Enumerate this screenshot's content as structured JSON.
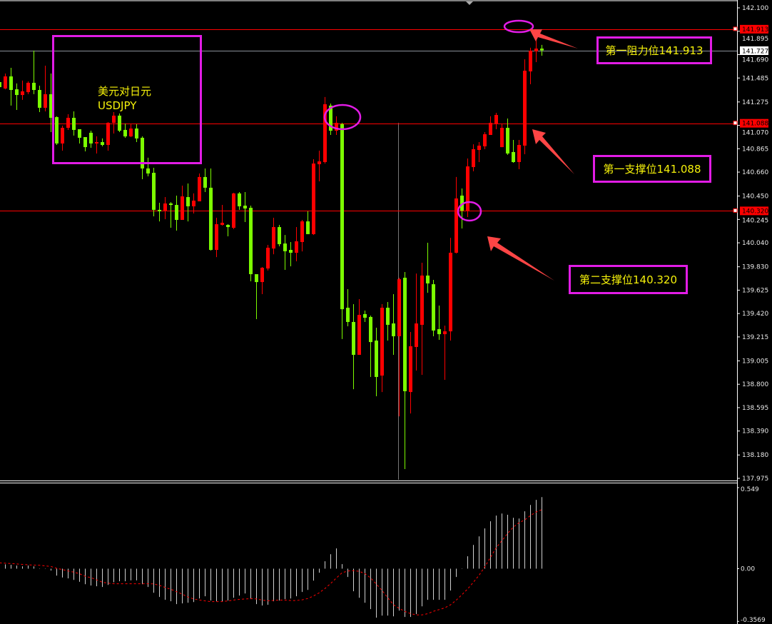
{
  "chart_data": {
    "type": "candlestick",
    "symbol_label": "美元对日元",
    "symbol": "USDJPY",
    "up_color": "#ff0000",
    "down_color": "#7cfc00",
    "price_axis": {
      "ylim": [
        137.975,
        142.1
      ],
      "ticks": [
        "142.100",
        "141.895",
        "141.690",
        "141.485",
        "141.275",
        "141.070",
        "140.865",
        "140.660",
        "140.450",
        "140.245",
        "140.040",
        "139.830",
        "139.625",
        "139.420",
        "139.215",
        "139.005",
        "138.800",
        "138.595",
        "138.390",
        "138.180",
        "137.975"
      ]
    },
    "ohlc": [
      [
        141.449,
        141.48,
        141.386,
        141.405
      ],
      [
        141.393,
        141.524,
        141.386,
        141.499
      ],
      [
        141.499,
        141.574,
        141.243,
        141.38
      ],
      [
        141.386,
        141.437,
        141.205,
        141.336
      ],
      [
        141.336,
        141.462,
        141.293,
        141.368
      ],
      [
        141.361,
        141.455,
        141.343,
        141.443
      ],
      [
        141.443,
        141.725,
        141.343,
        141.38
      ],
      [
        141.38,
        141.418,
        141.186,
        141.224
      ],
      [
        141.224,
        141.593,
        141.192,
        141.343
      ],
      [
        141.343,
        141.524,
        141.011,
        141.136
      ],
      [
        141.142,
        141.149,
        140.898,
        140.911
      ],
      [
        140.911,
        141.067,
        140.848,
        141.048
      ],
      [
        141.048,
        141.167,
        141.03,
        141.136
      ],
      [
        141.136,
        141.192,
        140.98,
        141.03
      ],
      [
        141.036,
        141.036,
        140.911,
        140.961
      ],
      [
        140.967,
        140.967,
        140.842,
        140.879
      ],
      [
        141.005,
        141.023,
        140.873,
        140.911
      ],
      [
        140.911,
        140.973,
        140.823,
        140.923
      ],
      [
        140.923,
        140.955,
        140.886,
        140.898
      ],
      [
        140.898,
        141.098,
        140.848,
        141.092
      ],
      [
        141.092,
        141.186,
        140.998,
        141.155
      ],
      [
        141.155,
        141.174,
        141.011,
        141.023
      ],
      [
        141.03,
        141.086,
        140.961,
        140.973
      ],
      [
        140.973,
        141.086,
        140.967,
        141.042
      ],
      [
        141.042,
        141.08,
        140.923,
        140.955
      ],
      [
        140.961,
        140.973,
        140.598,
        140.692
      ],
      [
        140.692,
        140.786,
        140.623,
        140.648
      ],
      [
        140.654,
        140.698,
        140.272,
        140.329
      ],
      [
        140.329,
        140.391,
        140.228,
        140.316
      ],
      [
        140.316,
        140.441,
        140.247,
        140.385
      ],
      [
        140.385,
        140.397,
        140.172,
        140.372
      ],
      [
        140.372,
        140.454,
        140.147,
        140.241
      ],
      [
        140.241,
        140.541,
        140.241,
        140.447
      ],
      [
        140.441,
        140.56,
        140.228,
        140.36
      ],
      [
        140.36,
        140.473,
        140.297,
        140.41
      ],
      [
        140.404,
        140.648,
        140.404,
        140.617
      ],
      [
        140.617,
        140.692,
        140.485,
        140.523
      ],
      [
        140.523,
        140.692,
        139.972,
        139.978
      ],
      [
        139.978,
        140.26,
        139.915,
        140.203
      ],
      [
        140.197,
        140.372,
        140.191,
        140.216
      ],
      [
        140.197,
        140.203,
        140.097,
        140.178
      ],
      [
        140.172,
        140.479,
        140.16,
        140.473
      ],
      [
        140.473,
        140.485,
        140.329,
        140.36
      ],
      [
        140.366,
        140.485,
        140.222,
        140.341
      ],
      [
        140.347,
        140.366,
        139.703,
        139.765
      ],
      [
        139.765,
        139.765,
        139.371,
        139.696
      ],
      [
        139.696,
        139.828,
        139.59,
        139.821
      ],
      [
        139.815,
        140.022,
        139.797,
        139.997
      ],
      [
        139.99,
        140.26,
        139.94,
        140.178
      ],
      [
        140.178,
        140.197,
        140.009,
        140.028
      ],
      [
        140.034,
        140.109,
        139.803,
        139.966
      ],
      [
        139.978,
        140.047,
        139.834,
        139.953
      ],
      [
        139.953,
        140.178,
        139.878,
        140.053
      ],
      [
        140.047,
        140.241,
        139.965,
        140.228
      ],
      [
        140.228,
        140.316,
        140.116,
        140.116
      ],
      [
        140.116,
        140.773,
        140.109,
        140.735
      ],
      [
        140.729,
        140.848,
        140.579,
        140.754
      ],
      [
        140.748,
        141.318,
        140.735,
        141.255
      ],
      [
        141.243,
        141.261,
        140.986,
        141.023
      ],
      [
        141.023,
        141.149,
        140.986,
        141.092
      ],
      [
        141.08,
        141.092,
        139.196,
        139.458
      ],
      [
        139.471,
        139.634,
        139.308,
        139.346
      ],
      [
        139.346,
        139.502,
        138.757,
        139.058
      ],
      [
        139.058,
        139.546,
        139.058,
        139.408
      ],
      [
        139.415,
        139.446,
        139.346,
        139.383
      ],
      [
        139.39,
        139.402,
        138.864,
        139.17
      ],
      [
        139.183,
        139.296,
        138.695,
        138.864
      ],
      [
        138.876,
        139.502,
        138.732,
        139.471
      ],
      [
        139.471,
        139.521,
        139.183,
        139.321
      ],
      [
        139.333,
        139.59,
        139.058,
        139.221
      ],
      [
        139.221,
        139.734,
        138.519,
        139.721
      ],
      [
        139.734,
        139.784,
        138.056,
        138.739
      ],
      [
        138.732,
        139.258,
        138.544,
        139.133
      ],
      [
        139.127,
        139.771,
        138.92,
        139.333
      ],
      [
        139.321,
        139.865,
        138.883,
        139.753
      ],
      [
        139.753,
        140.041,
        139.602,
        139.684
      ],
      [
        139.677,
        139.715,
        139.221,
        139.271
      ],
      [
        139.283,
        139.49,
        139.189,
        139.239
      ],
      [
        139.239,
        139.314,
        138.839,
        139.264
      ],
      [
        139.264,
        140.084,
        139.183,
        139.953
      ],
      [
        139.953,
        140.617,
        139.947,
        140.429
      ],
      [
        140.454,
        140.516,
        140.166,
        140.322
      ],
      [
        140.322,
        140.779,
        140.266,
        140.71
      ],
      [
        140.704,
        140.904,
        140.667,
        140.861
      ],
      [
        140.854,
        140.923,
        140.748,
        140.892
      ],
      [
        140.886,
        141.011,
        140.861,
        140.992
      ],
      [
        140.986,
        141.149,
        140.986,
        141.092
      ],
      [
        141.08,
        141.18,
        141.036,
        141.161
      ],
      [
        140.879,
        141.086,
        140.879,
        141.048
      ],
      [
        141.048,
        141.13,
        140.811,
        140.823
      ],
      [
        140.836,
        140.942,
        140.742,
        140.748
      ],
      [
        140.748,
        140.942,
        140.685,
        140.898
      ],
      [
        140.892,
        141.649,
        140.817,
        141.549
      ],
      [
        141.543,
        141.75,
        141.43,
        141.725
      ],
      [
        141.718,
        141.818,
        141.624,
        141.743
      ],
      [
        141.743,
        141.775,
        141.681,
        141.727
      ]
    ],
    "levels": [
      {
        "price": "141.913",
        "color": "#ff0000"
      },
      {
        "price": "141.088",
        "color": "#ff0000"
      },
      {
        "price": "140.320",
        "color": "#ff0000"
      }
    ],
    "current_price": "141.727",
    "indicator": {
      "ylim": [
        -0.3569,
        0.549
      ],
      "tick_labels": [
        "0.549",
        "0.00",
        "-0.3569"
      ],
      "histogram_color": "#d0d0d0",
      "signal_color": "#ff0000",
      "histogram": [
        0,
        0.029,
        0.026,
        0.021,
        0.016,
        0.021,
        0.016,
        0.002,
        0.002,
        -0.013,
        -0.047,
        -0.06,
        -0.066,
        -0.076,
        -0.089,
        -0.105,
        -0.114,
        -0.119,
        -0.124,
        -0.11,
        -0.092,
        -0.085,
        -0.085,
        -0.079,
        -0.079,
        -0.105,
        -0.124,
        -0.163,
        -0.192,
        -0.211,
        -0.221,
        -0.24,
        -0.235,
        -0.231,
        -0.226,
        -0.202,
        -0.187,
        -0.216,
        -0.221,
        -0.221,
        -0.216,
        -0.197,
        -0.182,
        -0.168,
        -0.206,
        -0.24,
        -0.25,
        -0.245,
        -0.221,
        -0.216,
        -0.206,
        -0.202,
        -0.187,
        -0.158,
        -0.144,
        -0.081,
        -0.027,
        0.05,
        0.098,
        0.137,
        0.031,
        -0.056,
        -0.153,
        -0.197,
        -0.231,
        -0.274,
        -0.332,
        -0.318,
        -0.318,
        -0.323,
        -0.284,
        -0.327,
        -0.327,
        -0.308,
        -0.255,
        -0.211,
        -0.211,
        -0.211,
        -0.211,
        -0.148,
        -0.056,
        0.002,
        0.084,
        0.161,
        0.219,
        0.273,
        0.321,
        0.36,
        0.374,
        0.365,
        0.345,
        0.34,
        0.389,
        0.432,
        0.466,
        0.485
      ],
      "signal": [
        0.039,
        0.037,
        0.035,
        0.032,
        0.029,
        0.026,
        0.024,
        0.023,
        0.019,
        0.015,
        0.002,
        -0.006,
        -0.016,
        -0.023,
        -0.035,
        -0.052,
        -0.061,
        -0.076,
        -0.092,
        -0.098,
        -0.102,
        -0.102,
        -0.102,
        -0.102,
        -0.102,
        -0.102,
        -0.102,
        -0.103,
        -0.113,
        -0.127,
        -0.14,
        -0.156,
        -0.173,
        -0.192,
        -0.205,
        -0.213,
        -0.218,
        -0.223,
        -0.223,
        -0.223,
        -0.218,
        -0.213,
        -0.208,
        -0.205,
        -0.203,
        -0.205,
        -0.213,
        -0.218,
        -0.215,
        -0.213,
        -0.213,
        -0.216,
        -0.216,
        -0.211,
        -0.202,
        -0.185,
        -0.163,
        -0.134,
        -0.1,
        -0.063,
        -0.027,
        -0.016,
        -0.013,
        -0.018,
        -0.034,
        -0.063,
        -0.105,
        -0.148,
        -0.197,
        -0.245,
        -0.269,
        -0.29,
        -0.305,
        -0.313,
        -0.313,
        -0.305,
        -0.289,
        -0.277,
        -0.265,
        -0.245,
        -0.213,
        -0.176,
        -0.137,
        -0.092,
        -0.044,
        0.013,
        0.077,
        0.142,
        0.19,
        0.239,
        0.282,
        0.311,
        0.331,
        0.36,
        0.384,
        0.4
      ]
    }
  },
  "annotations": {
    "resistance_1": "第一阻力位141.913",
    "support_1": "第一支撑位141.088",
    "support_2": "第二支撑位140.320",
    "highlight_color": "#e21ce6",
    "text_color": "#f5f10a",
    "arrow_color": "#ff4040"
  }
}
